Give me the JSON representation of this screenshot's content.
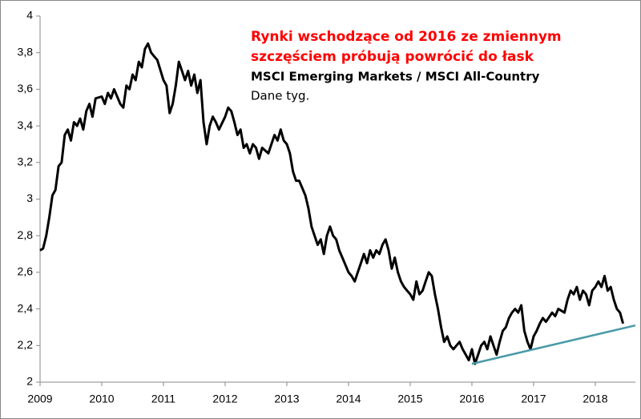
{
  "chart_data": {
    "type": "line",
    "title_lines": [
      "Rynki wschodzące od 2016 ze zmiennym",
      "szczęściem próbują powrócić do łask"
    ],
    "subtitle": "MSCI Emerging Markets / MSCI All-Country",
    "note": "Dane tyg.",
    "title_color": "#ff0000",
    "x": [
      2009.0,
      2009.05,
      2009.1,
      2009.15,
      2009.2,
      2009.25,
      2009.3,
      2009.35,
      2009.4,
      2009.45,
      2009.5,
      2009.55,
      2009.6,
      2009.65,
      2009.7,
      2009.75,
      2009.8,
      2009.85,
      2009.9,
      2010.0,
      2010.05,
      2010.1,
      2010.15,
      2010.2,
      2010.3,
      2010.35,
      2010.4,
      2010.45,
      2010.5,
      2010.55,
      2010.6,
      2010.65,
      2010.7,
      2010.75,
      2010.8,
      2010.85,
      2010.9,
      2011.0,
      2011.05,
      2011.1,
      2011.15,
      2011.2,
      2011.25,
      2011.3,
      2011.35,
      2011.4,
      2011.45,
      2011.5,
      2011.55,
      2011.6,
      2011.65,
      2011.7,
      2011.75,
      2011.8,
      2011.85,
      2011.9,
      2012.0,
      2012.05,
      2012.1,
      2012.15,
      2012.2,
      2012.25,
      2012.3,
      2012.35,
      2012.4,
      2012.45,
      2012.5,
      2012.55,
      2012.6,
      2012.7,
      2012.8,
      2012.85,
      2012.9,
      2012.95,
      2013.0,
      2013.05,
      2013.1,
      2013.15,
      2013.2,
      2013.3,
      2013.35,
      2013.4,
      2013.45,
      2013.5,
      2013.55,
      2013.6,
      2013.65,
      2013.7,
      2013.75,
      2013.8,
      2013.85,
      2013.9,
      2014.0,
      2014.05,
      2014.1,
      2014.15,
      2014.2,
      2014.25,
      2014.3,
      2014.35,
      2014.4,
      2014.45,
      2014.5,
      2014.55,
      2014.6,
      2014.65,
      2014.7,
      2014.75,
      2014.8,
      2014.85,
      2014.9,
      2014.95,
      2015.0,
      2015.05,
      2015.1,
      2015.15,
      2015.2,
      2015.25,
      2015.3,
      2015.35,
      2015.4,
      2015.45,
      2015.5,
      2015.55,
      2015.6,
      2015.65,
      2015.7,
      2015.75,
      2015.8,
      2015.85,
      2015.9,
      2015.95,
      2016.0,
      2016.05,
      2016.1,
      2016.15,
      2016.2,
      2016.25,
      2016.3,
      2016.35,
      2016.4,
      2016.45,
      2016.5,
      2016.55,
      2016.6,
      2016.65,
      2016.7,
      2016.75,
      2016.8,
      2016.85,
      2016.9,
      2016.95,
      2017.0,
      2017.05,
      2017.1,
      2017.15,
      2017.2,
      2017.3,
      2017.35,
      2017.4,
      2017.5,
      2017.55,
      2017.6,
      2017.65,
      2017.7,
      2017.75,
      2017.8,
      2017.85,
      2017.9,
      2017.95,
      2018.0,
      2018.05,
      2018.1,
      2018.15,
      2018.2,
      2018.25,
      2018.3,
      2018.35,
      2018.4,
      2018.45
    ],
    "series": [
      {
        "color": "#000000",
        "values": [
          2.72,
          2.73,
          2.8,
          2.9,
          3.02,
          3.05,
          3.18,
          3.2,
          3.35,
          3.38,
          3.32,
          3.42,
          3.4,
          3.44,
          3.38,
          3.48,
          3.52,
          3.45,
          3.55,
          3.56,
          3.52,
          3.58,
          3.55,
          3.6,
          3.52,
          3.5,
          3.62,
          3.6,
          3.68,
          3.65,
          3.75,
          3.72,
          3.82,
          3.85,
          3.8,
          3.78,
          3.76,
          3.65,
          3.62,
          3.47,
          3.52,
          3.62,
          3.75,
          3.7,
          3.65,
          3.7,
          3.62,
          3.68,
          3.58,
          3.65,
          3.42,
          3.3,
          3.4,
          3.45,
          3.42,
          3.38,
          3.45,
          3.5,
          3.48,
          3.42,
          3.35,
          3.38,
          3.28,
          3.3,
          3.25,
          3.3,
          3.28,
          3.22,
          3.28,
          3.25,
          3.35,
          3.32,
          3.38,
          3.32,
          3.3,
          3.25,
          3.15,
          3.1,
          3.1,
          3.02,
          2.95,
          2.85,
          2.8,
          2.75,
          2.78,
          2.7,
          2.8,
          2.85,
          2.8,
          2.78,
          2.72,
          2.68,
          2.6,
          2.58,
          2.55,
          2.6,
          2.65,
          2.7,
          2.65,
          2.72,
          2.68,
          2.72,
          2.7,
          2.75,
          2.78,
          2.72,
          2.62,
          2.68,
          2.6,
          2.55,
          2.52,
          2.5,
          2.48,
          2.45,
          2.55,
          2.48,
          2.5,
          2.55,
          2.6,
          2.58,
          2.48,
          2.4,
          2.3,
          2.22,
          2.25,
          2.2,
          2.18,
          2.2,
          2.22,
          2.18,
          2.15,
          2.12,
          2.18,
          2.1,
          2.15,
          2.2,
          2.22,
          2.18,
          2.25,
          2.2,
          2.15,
          2.22,
          2.28,
          2.3,
          2.35,
          2.38,
          2.4,
          2.38,
          2.42,
          2.28,
          2.22,
          2.18,
          2.25,
          2.28,
          2.32,
          2.35,
          2.33,
          2.38,
          2.36,
          2.4,
          2.38,
          2.45,
          2.5,
          2.48,
          2.52,
          2.45,
          2.5,
          2.48,
          2.42,
          2.5,
          2.52,
          2.55,
          2.52,
          2.58,
          2.5,
          2.52,
          2.45,
          2.4,
          2.38,
          2.32
        ]
      }
    ],
    "trendline": {
      "color": "#4a9aa8",
      "x": [
        2016.0,
        2018.65
      ],
      "values": [
        2.1,
        2.31
      ]
    },
    "xlim": [
      2009,
      2018.65
    ],
    "xticks": [
      2009,
      2010,
      2011,
      2012,
      2013,
      2014,
      2015,
      2016,
      2017,
      2018
    ],
    "ylim": [
      2,
      4
    ],
    "yticks": [
      2,
      {
        "value": 2.2,
        "label": "2,2"
      },
      {
        "value": 2.4,
        "label": "2,4"
      },
      {
        "value": 2.6,
        "label": "2,6"
      },
      {
        "value": 2.8,
        "label": "2,8"
      },
      3,
      {
        "value": 3.2,
        "label": "3,2"
      },
      {
        "value": 3.4,
        "label": "3,4"
      },
      {
        "value": 3.6,
        "label": "3,6"
      },
      {
        "value": 3.8,
        "label": "3,8"
      },
      4
    ]
  }
}
